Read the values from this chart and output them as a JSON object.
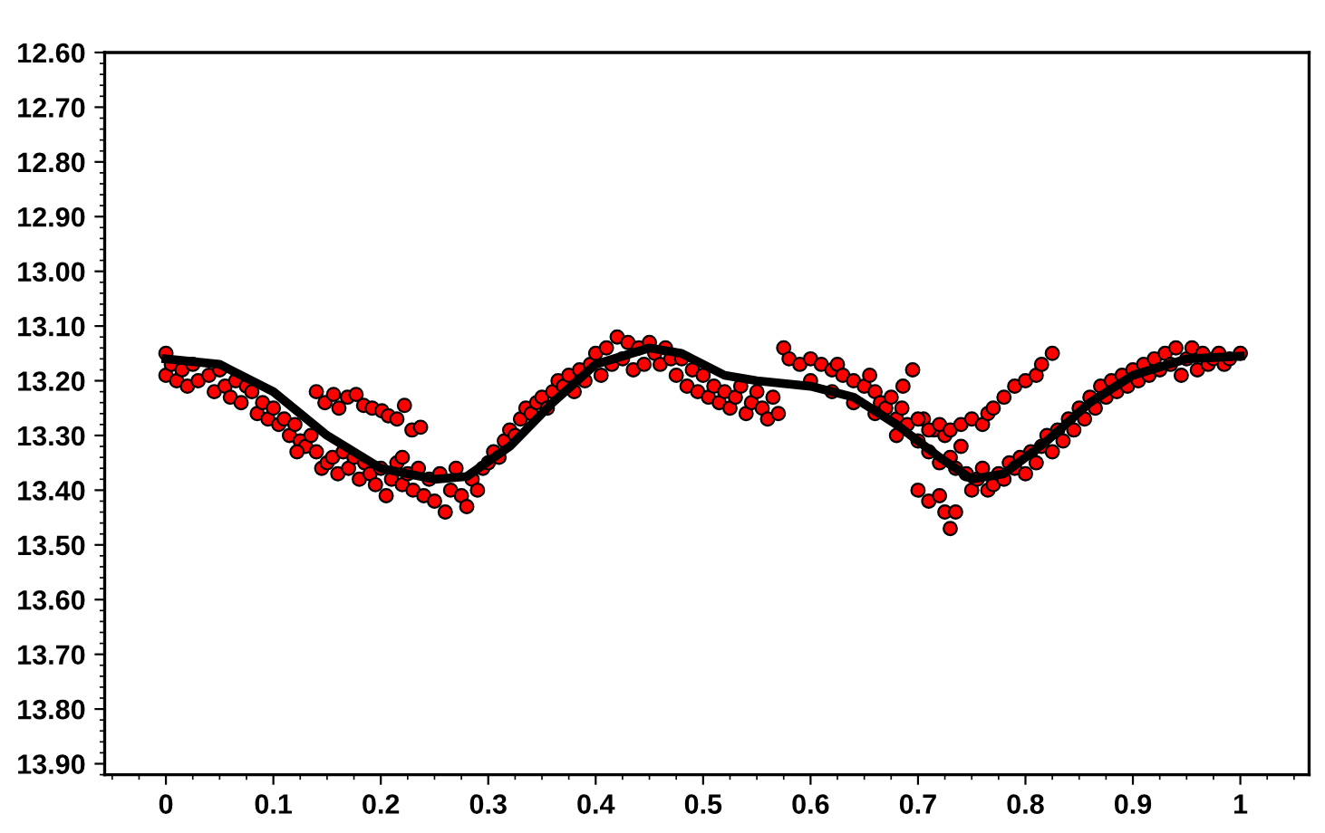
{
  "chart_data": {
    "type": "scatter",
    "xlim": [
      -0.057,
      1.064
    ],
    "ylim": [
      13.92,
      12.6
    ],
    "xticks": [
      0,
      0.1,
      0.2,
      0.3,
      0.4,
      0.5,
      0.6,
      0.7,
      0.8,
      0.9,
      1
    ],
    "yticks": [
      {
        "value": 12.6,
        "label": "12.60"
      },
      {
        "value": 12.7,
        "label": "12.70"
      },
      {
        "value": 12.8,
        "label": "12.80"
      },
      {
        "value": 12.9,
        "label": "12.90"
      },
      {
        "value": 13.0,
        "label": "13.00"
      },
      {
        "value": 13.1,
        "label": "13.10"
      },
      {
        "value": 13.2,
        "label": "13.20"
      },
      {
        "value": 13.3,
        "label": "13.30"
      },
      {
        "value": 13.4,
        "label": "13.40"
      },
      {
        "value": 13.5,
        "label": "13.50"
      },
      {
        "value": 13.6,
        "label": "13.60"
      },
      {
        "value": 13.7,
        "label": "13.70"
      },
      {
        "value": 13.8,
        "label": "13.80"
      },
      {
        "value": 13.9,
        "label": "13.90"
      }
    ],
    "grid": false,
    "legend": false,
    "series": [
      {
        "color": "#ff0000",
        "marker": "circle",
        "x": [
          0.0,
          0.0,
          0.005,
          0.01,
          0.015,
          0.02,
          0.025,
          0.03,
          0.04,
          0.045,
          0.05,
          0.055,
          0.06,
          0.065,
          0.07,
          0.075,
          0.08,
          0.085,
          0.09,
          0.095,
          0.1,
          0.105,
          0.11,
          0.115,
          0.12,
          0.125,
          0.13,
          0.135,
          0.14,
          0.145,
          0.15,
          0.155,
          0.16,
          0.165,
          0.17,
          0.175,
          0.18,
          0.185,
          0.19,
          0.195,
          0.2,
          0.205,
          0.21,
          0.215,
          0.22,
          0.225,
          0.23,
          0.235,
          0.24,
          0.245,
          0.25,
          0.255,
          0.26,
          0.265,
          0.27,
          0.275,
          0.28,
          0.285,
          0.29,
          0.295,
          0.3,
          0.305,
          0.31,
          0.315,
          0.32,
          0.325,
          0.33,
          0.335,
          0.34,
          0.345,
          0.35,
          0.355,
          0.36,
          0.365,
          0.37,
          0.375,
          0.38,
          0.385,
          0.39,
          0.395,
          0.4,
          0.405,
          0.41,
          0.415,
          0.42,
          0.425,
          0.43,
          0.435,
          0.44,
          0.445,
          0.45,
          0.455,
          0.46,
          0.465,
          0.47,
          0.475,
          0.48,
          0.485,
          0.49,
          0.495,
          0.5,
          0.505,
          0.51,
          0.515,
          0.52,
          0.525,
          0.53,
          0.535,
          0.54,
          0.545,
          0.55,
          0.555,
          0.56,
          0.565,
          0.57,
          0.575,
          0.58,
          0.59,
          0.6,
          0.61,
          0.62,
          0.625,
          0.63,
          0.64,
          0.65,
          0.655,
          0.66,
          0.665,
          0.67,
          0.675,
          0.68,
          0.685,
          0.6,
          0.62,
          0.64,
          0.66,
          0.68,
          0.69,
          0.7,
          0.705,
          0.71,
          0.715,
          0.72,
          0.725,
          0.73,
          0.735,
          0.74,
          0.745,
          0.75,
          0.755,
          0.76,
          0.765,
          0.77,
          0.775,
          0.78,
          0.785,
          0.79,
          0.795,
          0.8,
          0.805,
          0.81,
          0.815,
          0.82,
          0.825,
          0.83,
          0.835,
          0.84,
          0.845,
          0.85,
          0.855,
          0.86,
          0.865,
          0.87,
          0.875,
          0.88,
          0.885,
          0.89,
          0.895,
          0.9,
          0.905,
          0.91,
          0.915,
          0.92,
          0.925,
          0.93,
          0.935,
          0.94,
          0.945,
          0.95,
          0.955,
          0.96,
          0.965,
          0.97,
          0.975,
          0.98,
          0.985,
          0.99,
          1.0,
          0.7,
          0.71,
          0.72,
          0.73,
          0.74,
          0.75,
          0.76,
          0.765,
          0.77,
          0.78,
          0.79,
          0.8,
          0.81,
          0.815,
          0.825,
          0.686,
          0.695,
          0.7,
          0.71,
          0.72,
          0.725,
          0.73,
          0.735,
          0.14,
          0.148,
          0.156,
          0.161,
          0.169,
          0.177,
          0.184,
          0.192,
          0.201,
          0.207,
          0.215,
          0.222,
          0.229,
          0.237,
          0.122,
          0.22
        ],
        "values": [
          13.15,
          13.19,
          13.17,
          13.2,
          13.18,
          13.21,
          13.17,
          13.2,
          13.19,
          13.22,
          13.18,
          13.21,
          13.23,
          13.2,
          13.24,
          13.21,
          13.22,
          13.26,
          13.24,
          13.27,
          13.25,
          13.28,
          13.27,
          13.3,
          13.28,
          13.31,
          13.32,
          13.3,
          13.33,
          13.36,
          13.35,
          13.34,
          13.37,
          13.33,
          13.36,
          13.34,
          13.38,
          13.35,
          13.37,
          13.39,
          13.36,
          13.41,
          13.38,
          13.35,
          13.39,
          13.37,
          13.4,
          13.36,
          13.41,
          13.38,
          13.42,
          13.37,
          13.44,
          13.4,
          13.36,
          13.41,
          13.43,
          13.38,
          13.4,
          13.36,
          13.35,
          13.33,
          13.34,
          13.31,
          13.29,
          13.3,
          13.27,
          13.25,
          13.26,
          13.24,
          13.23,
          13.25,
          13.22,
          13.2,
          13.21,
          13.19,
          13.22,
          13.18,
          13.2,
          13.17,
          13.15,
          13.19,
          13.14,
          13.17,
          13.12,
          13.16,
          13.13,
          13.18,
          13.14,
          13.17,
          13.13,
          13.15,
          13.17,
          13.14,
          13.16,
          13.19,
          13.16,
          13.21,
          13.18,
          13.22,
          13.19,
          13.23,
          13.21,
          13.24,
          13.22,
          13.25,
          13.23,
          13.21,
          13.26,
          13.24,
          13.22,
          13.25,
          13.27,
          13.23,
          13.26,
          13.14,
          13.16,
          13.17,
          13.16,
          13.17,
          13.18,
          13.17,
          13.19,
          13.2,
          13.21,
          13.19,
          13.22,
          13.24,
          13.25,
          13.23,
          13.27,
          13.25,
          13.2,
          13.22,
          13.24,
          13.26,
          13.3,
          13.28,
          13.31,
          13.27,
          13.33,
          13.29,
          13.35,
          13.3,
          13.34,
          13.36,
          13.32,
          13.37,
          13.4,
          13.38,
          13.36,
          13.4,
          13.39,
          13.37,
          13.38,
          13.35,
          13.36,
          13.34,
          13.37,
          13.33,
          13.35,
          13.32,
          13.3,
          13.33,
          13.29,
          13.31,
          13.27,
          13.29,
          13.25,
          13.27,
          13.23,
          13.25,
          13.21,
          13.23,
          13.2,
          13.22,
          13.19,
          13.21,
          13.18,
          13.2,
          13.17,
          13.19,
          13.16,
          13.18,
          13.15,
          13.17,
          13.14,
          13.19,
          13.16,
          13.14,
          13.18,
          13.15,
          13.17,
          13.16,
          13.15,
          13.17,
          13.16,
          13.15,
          13.27,
          13.29,
          13.28,
          13.29,
          13.28,
          13.27,
          13.28,
          13.26,
          13.25,
          13.23,
          13.21,
          13.2,
          13.19,
          13.17,
          13.15,
          13.21,
          13.18,
          13.4,
          13.42,
          13.41,
          13.44,
          13.47,
          13.44,
          13.22,
          13.24,
          13.225,
          13.25,
          13.23,
          13.225,
          13.245,
          13.25,
          13.255,
          13.264,
          13.27,
          13.245,
          13.29,
          13.285,
          13.33,
          13.34
        ]
      },
      {
        "type": "line",
        "color": "#000000",
        "marker": "none",
        "line_style": "solid",
        "x": [
          0,
          0.05,
          0.1,
          0.15,
          0.2,
          0.25,
          0.28,
          0.32,
          0.36,
          0.4,
          0.45,
          0.48,
          0.52,
          0.55,
          0.6,
          0.64,
          0.68,
          0.72,
          0.75,
          0.78,
          0.82,
          0.86,
          0.9,
          0.95,
          1.0
        ],
        "values": [
          13.16,
          13.17,
          13.22,
          13.3,
          13.36,
          13.38,
          13.375,
          13.32,
          13.24,
          13.17,
          13.14,
          13.15,
          13.19,
          13.2,
          13.21,
          13.23,
          13.28,
          13.34,
          13.38,
          13.37,
          13.31,
          13.24,
          13.19,
          13.16,
          13.155
        ]
      }
    ]
  }
}
